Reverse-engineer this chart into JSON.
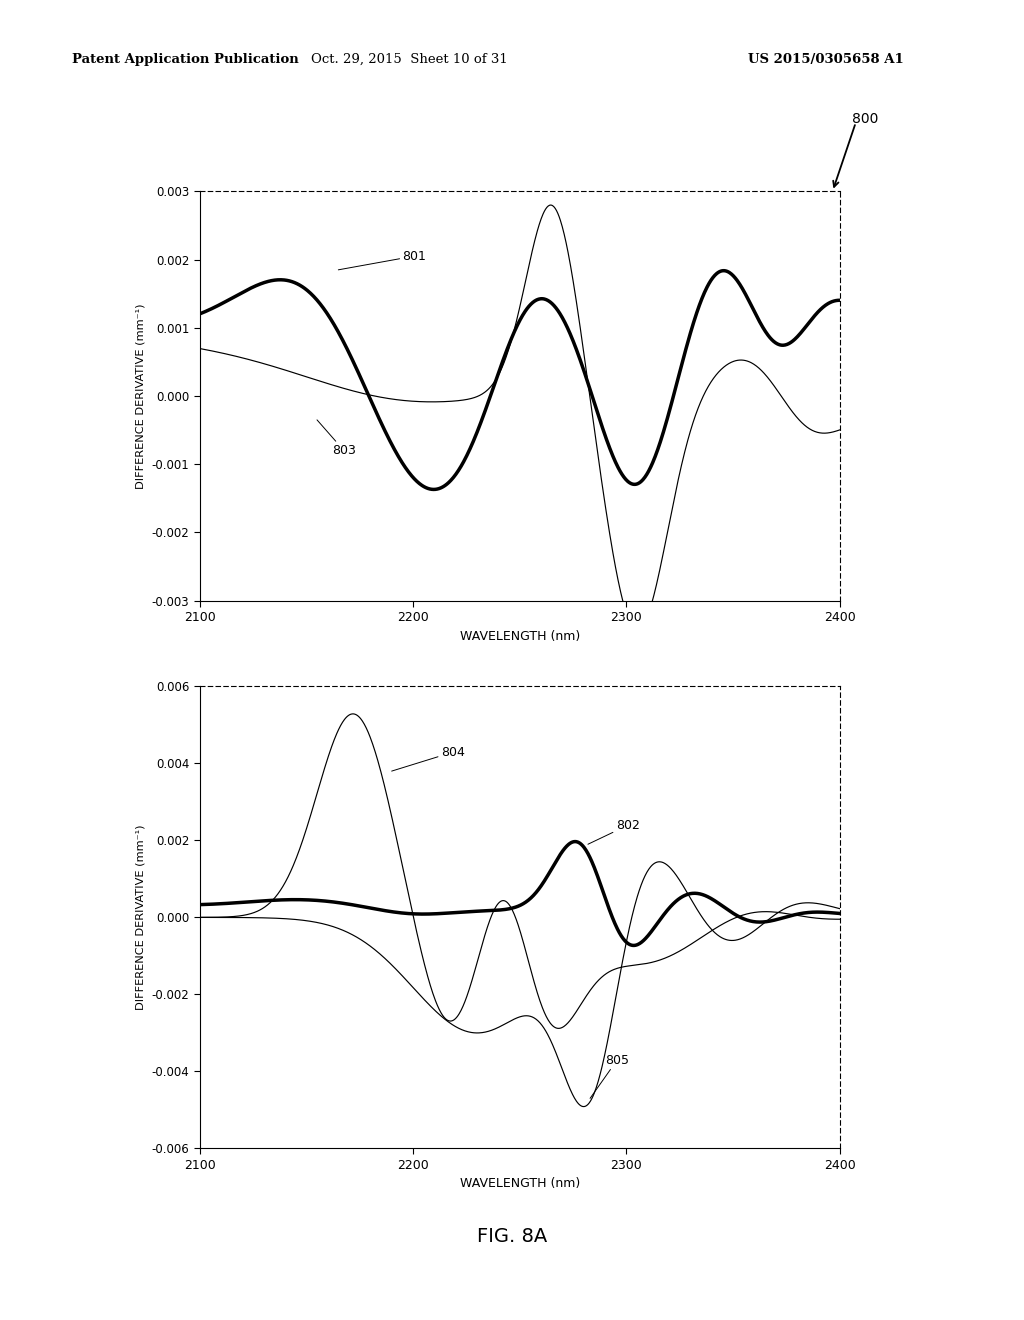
{
  "header_left": "Patent Application Publication",
  "header_center": "Oct. 29, 2015  Sheet 10 of 31",
  "header_right": "US 2015/0305658 A1",
  "fig_label": "800",
  "fig_caption": "FIG. 8A",
  "plot1": {
    "ylabel": "DIFFERENCE DERIVATIVE (mm⁻¹)",
    "xlabel": "WAVELENGTH (nm)",
    "xlim": [
      2100,
      2400
    ],
    "ylim": [
      -0.003,
      0.003
    ],
    "yticks": [
      -0.003,
      -0.002,
      -0.001,
      0.0,
      0.001,
      0.002,
      0.003
    ],
    "ytick_labels": [
      "-0.003",
      "-0.002",
      "-0.001",
      "0.000",
      "0.001",
      "0.002",
      "0.003"
    ],
    "xticks": [
      2100,
      2200,
      2300,
      2400
    ],
    "label_801": "801",
    "label_803": "803"
  },
  "plot2": {
    "ylabel": "DIFFERENCE DERIVATIVE (mm⁻¹)",
    "xlabel": "WAVELENGTH (nm)",
    "xlim": [
      2100,
      2400
    ],
    "ylim": [
      -0.006,
      0.006
    ],
    "yticks": [
      -0.006,
      -0.004,
      -0.002,
      0.0,
      0.002,
      0.004,
      0.006
    ],
    "ytick_labels": [
      "-0.006",
      "-0.004",
      "-0.002",
      "0.000",
      "0.002",
      "0.004",
      "0.006"
    ],
    "xticks": [
      2100,
      2200,
      2300,
      2400
    ],
    "label_802": "802",
    "label_804": "804",
    "label_805": "805"
  },
  "background_color": "#ffffff"
}
